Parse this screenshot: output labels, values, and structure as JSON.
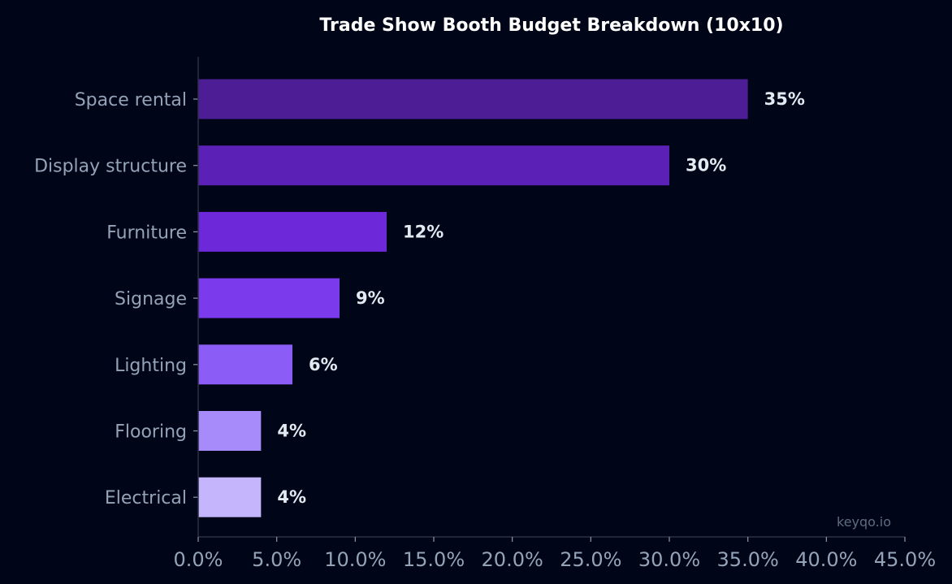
{
  "chart_data": {
    "type": "bar",
    "orientation": "horizontal",
    "title": "Trade Show Booth Budget Breakdown (10x10)",
    "xlabel": "",
    "ylabel": "",
    "categories": [
      "Space rental",
      "Display structure",
      "Furniture",
      "Signage",
      "Lighting",
      "Flooring",
      "Electrical"
    ],
    "values": [
      35,
      30,
      12,
      9,
      6,
      4,
      4
    ],
    "data_labels": [
      "35%",
      "30%",
      "12%",
      "9%",
      "6%",
      "4%",
      "4%"
    ],
    "xlim": [
      0,
      45
    ],
    "xticks": [
      0,
      5,
      10,
      15,
      20,
      25,
      30,
      35,
      40,
      45
    ],
    "xtick_labels": [
      "0.0%",
      "5.0%",
      "10.0%",
      "15.0%",
      "20.0%",
      "25.0%",
      "30.0%",
      "35.0%",
      "40.0%",
      "45.0%"
    ],
    "grid": false,
    "colors": [
      "#4c1d95",
      "#5b21b6",
      "#6d28d9",
      "#7c3aed",
      "#8b5cf6",
      "#a78bfa",
      "#c4b5fd"
    ],
    "background": "#000617",
    "watermark": "keyqo.io"
  }
}
